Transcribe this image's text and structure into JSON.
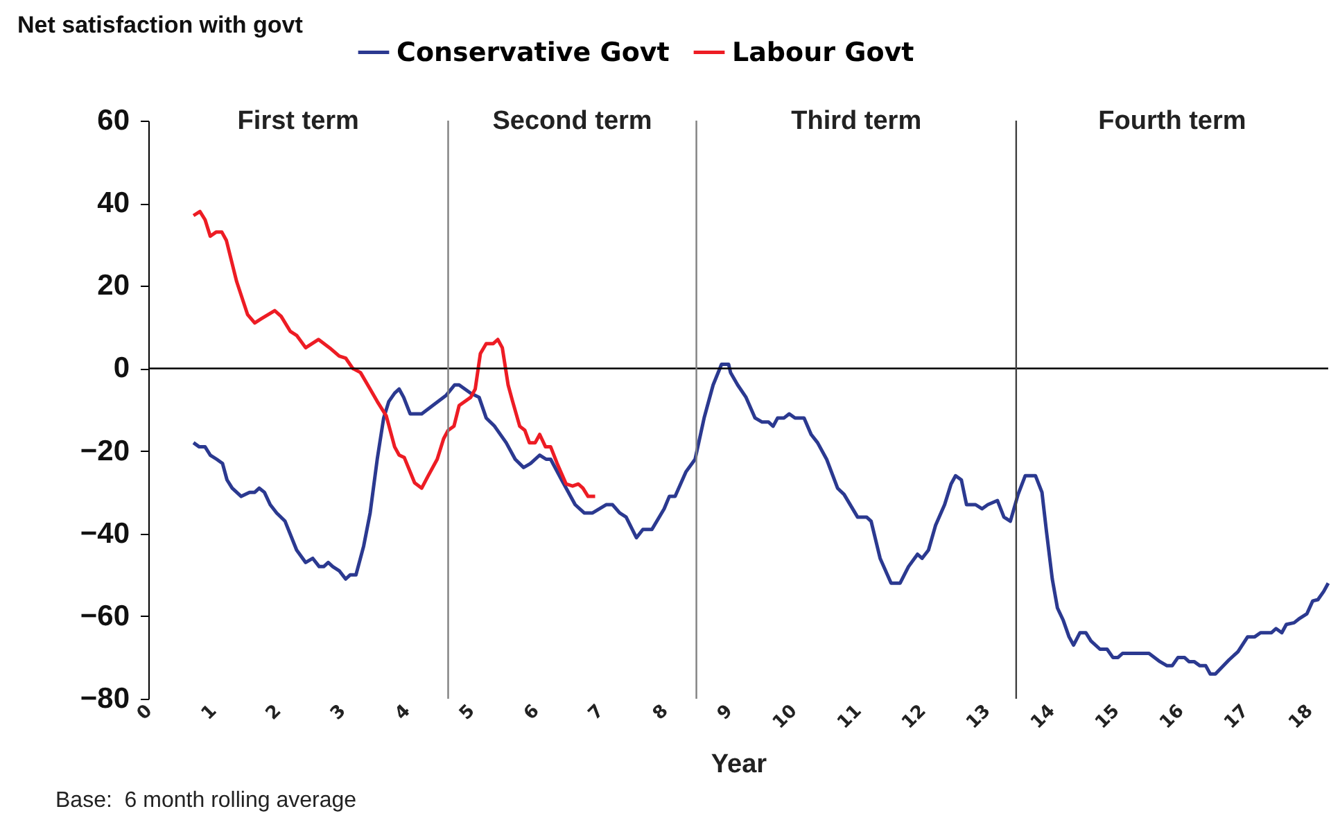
{
  "chart_data": {
    "type": "line",
    "ylabel": "Net satisfaction with govt",
    "xlabel": "Year",
    "legend": "top",
    "grid": false,
    "line_style": "solid",
    "marker": "none",
    "xlim": [
      0,
      18.3
    ],
    "ylim": [
      -80,
      60
    ],
    "xticks": [
      0,
      1,
      2,
      3,
      4,
      5,
      6,
      7,
      8,
      9,
      10,
      11,
      12,
      13,
      14,
      15,
      16,
      17,
      18
    ],
    "yticks": [
      -80,
      -60,
      -40,
      -20,
      0,
      20,
      40,
      60
    ],
    "ref_lines": [
      {
        "axis": "y",
        "value": 0,
        "color": "#000000"
      },
      {
        "axis": "x",
        "value": 4.65,
        "color": "#808080"
      },
      {
        "axis": "x",
        "value": 8.5,
        "color": "#808080"
      },
      {
        "axis": "x",
        "value": 13.46,
        "color": "#404040"
      }
    ],
    "annotations": [
      "First term",
      "Second term",
      "Third term",
      "Fourth term",
      "Base:  6 month rolling average"
    ],
    "series": [
      {
        "name": "Conservative Govt",
        "color": "#2b3990",
        "x": [
          0.7,
          0.79,
          0.88,
          0.96,
          1.06,
          1.15,
          1.22,
          1.3,
          1.44,
          1.57,
          1.65,
          1.72,
          1.8,
          1.89,
          1.99,
          2.12,
          2.3,
          2.44,
          2.55,
          2.65,
          2.72,
          2.79,
          2.86,
          2.96,
          3.06,
          3.13,
          3.22,
          3.34,
          3.44,
          3.55,
          3.65,
          3.73,
          3.82,
          3.89,
          3.96,
          4.06,
          4.24,
          4.41,
          4.62,
          4.75,
          4.82,
          5.0,
          5.13,
          5.24,
          5.37,
          5.55,
          5.69,
          5.82,
          5.93,
          6.07,
          6.17,
          6.24,
          6.41,
          6.62,
          6.76,
          6.89,
          7.1,
          7.2,
          7.31,
          7.41,
          7.57,
          7.67,
          7.81,
          8.0,
          8.08,
          8.17,
          8.34,
          8.48,
          8.62,
          8.76,
          8.89,
          9.0,
          9.03,
          9.14,
          9.27,
          9.41,
          9.52,
          9.62,
          9.69,
          9.76,
          9.86,
          9.94,
          10.03,
          10.17,
          10.28,
          10.38,
          10.52,
          10.69,
          10.79,
          11.0,
          11.14,
          11.21,
          11.35,
          11.52,
          11.66,
          11.79,
          11.93,
          12.0,
          12.1,
          12.21,
          12.35,
          12.45,
          12.52,
          12.61,
          12.69,
          12.83,
          12.93,
          13.02,
          13.17,
          13.27,
          13.37,
          13.49,
          13.6,
          13.76,
          13.86,
          13.93,
          14.02,
          14.1,
          14.19,
          14.28,
          14.35,
          14.45,
          14.54,
          14.62,
          14.76,
          14.87,
          14.96,
          15.04,
          15.11,
          15.52,
          15.69,
          15.8,
          15.88,
          15.97,
          16.07,
          16.14,
          16.22,
          16.31,
          16.4,
          16.47,
          16.55,
          16.76,
          16.9,
          17.05,
          17.16,
          17.25,
          17.42,
          17.49,
          17.58,
          17.65,
          17.77,
          17.86,
          17.97,
          18.06,
          18.14,
          18.23,
          18.3
        ],
        "values": [
          -18,
          -19,
          -19,
          -21,
          -22,
          -23,
          -27,
          -29,
          -31,
          -30,
          -30,
          -29,
          -30,
          -33,
          -35,
          -37,
          -44,
          -47,
          -46,
          -48,
          -48,
          -47,
          -48,
          -49,
          -51,
          -50,
          -50,
          -43,
          -35,
          -22,
          -12,
          -8,
          -6,
          -5,
          -7,
          -11,
          -11,
          -9,
          -6.5,
          -4,
          -4,
          -6,
          -7,
          -12,
          -14,
          -18,
          -22,
          -24,
          -23,
          -21,
          -22,
          -22,
          -27,
          -33,
          -35,
          -35,
          -33,
          -33,
          -35,
          -36,
          -41,
          -39,
          -39,
          -34,
          -31,
          -31,
          -25,
          -22,
          -12,
          -4,
          1,
          1,
          -1,
          -4,
          -7,
          -12,
          -13,
          -13,
          -14,
          -12,
          -12,
          -11,
          -12,
          -12,
          -16,
          -18,
          -22,
          -29,
          -30.5,
          -36,
          -36,
          -37,
          -46,
          -52,
          -52,
          -48,
          -45,
          -46,
          -44,
          -38,
          -33,
          -28,
          -26,
          -27,
          -33,
          -33,
          -34,
          -33,
          -32,
          -36,
          -37,
          -30.5,
          -26,
          -26,
          -30,
          -39.5,
          -51,
          -58,
          -61,
          -65,
          -67,
          -64,
          -64,
          -66,
          -68,
          -68,
          -70,
          -70,
          -69,
          -69,
          -71,
          -72,
          -72,
          -70,
          -70,
          -71,
          -71,
          -72,
          -72,
          -74,
          -74,
          -70.6,
          -68.6,
          -65,
          -65,
          -64,
          -64,
          -63,
          -64,
          -62,
          -61.6,
          -60.5,
          -59.4,
          -56.3,
          -56,
          -54,
          -52
        ]
      },
      {
        "name": "Labour Govt",
        "color": "#ed1c24",
        "x": [
          0.7,
          0.8,
          0.88,
          0.96,
          1.05,
          1.14,
          1.21,
          1.37,
          1.54,
          1.65,
          1.75,
          1.96,
          2.06,
          2.2,
          2.3,
          2.44,
          2.64,
          2.81,
          2.96,
          3.06,
          3.17,
          3.29,
          3.44,
          3.55,
          3.69,
          3.82,
          3.89,
          3.97,
          4.13,
          4.24,
          4.34,
          4.48,
          4.58,
          4.65,
          4.74,
          4.82,
          5.0,
          5.07,
          5.15,
          5.24,
          5.35,
          5.42,
          5.49,
          5.58,
          5.65,
          5.76,
          5.84,
          5.91,
          6.0,
          6.07,
          6.16,
          6.24,
          6.34,
          6.48,
          6.58,
          6.67,
          6.74,
          6.82,
          6.93
        ],
        "values": [
          37,
          38,
          36,
          32,
          33,
          33,
          31,
          21,
          13,
          11,
          12,
          14,
          12.6,
          9,
          8,
          5,
          7,
          5,
          3,
          2.5,
          0,
          -1,
          -5,
          -8,
          -11.5,
          -19,
          -21,
          -21.6,
          -27.7,
          -29,
          -26,
          -22,
          -17,
          -15,
          -14,
          -9,
          -7,
          -5,
          3.6,
          6,
          6,
          7,
          5,
          -4,
          -8,
          -14,
          -15,
          -18,
          -18,
          -16,
          -19,
          -19,
          -23,
          -28,
          -28.5,
          -28,
          -29,
          -31,
          -31
        ]
      }
    ]
  }
}
